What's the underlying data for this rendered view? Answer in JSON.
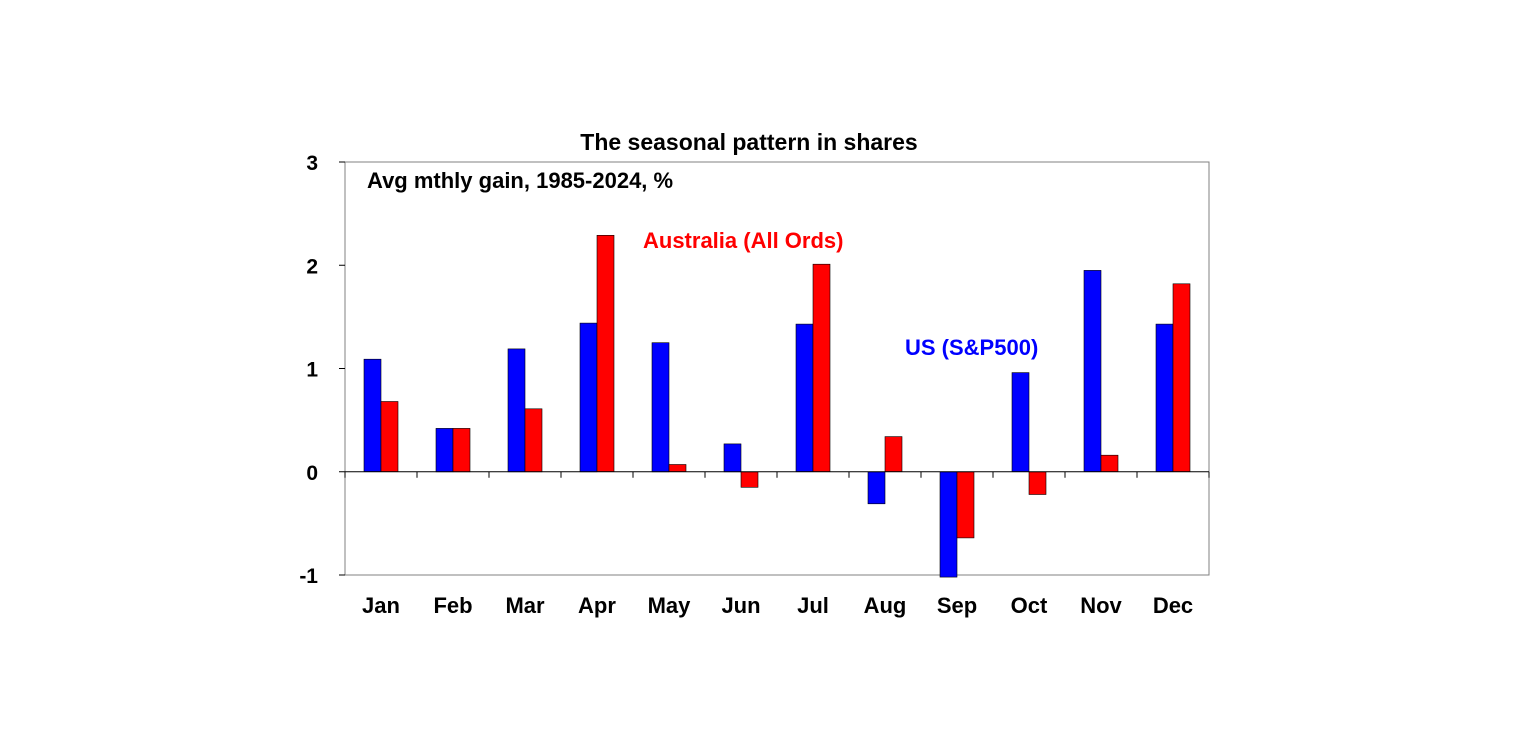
{
  "chart_data": {
    "type": "bar",
    "title": "The seasonal pattern in shares",
    "subtitle": "Avg mthly gain, 1985-2024, %",
    "xlabel": "",
    "ylabel": "",
    "ylim": [
      -1,
      3
    ],
    "yticks": [
      "3",
      "2",
      "1",
      "0",
      "-1"
    ],
    "ytick_values": [
      3,
      2,
      1,
      0,
      -1
    ],
    "grid": false,
    "categories": [
      "Jan",
      "Feb",
      "Mar",
      "Apr",
      "May",
      "Jun",
      "Jul",
      "Aug",
      "Sep",
      "Oct",
      "Nov",
      "Dec"
    ],
    "series": [
      {
        "name": "US (S&P500)",
        "color": "#0000ff",
        "values": [
          1.09,
          0.42,
          1.19,
          1.44,
          1.25,
          0.27,
          1.43,
          -0.31,
          -1.02,
          0.96,
          1.95,
          1.43
        ]
      },
      {
        "name": "Australia (All Ords)",
        "color": "#ff0000",
        "values": [
          0.68,
          0.42,
          0.61,
          2.29,
          0.07,
          -0.15,
          2.01,
          0.34,
          -0.64,
          -0.22,
          0.16,
          1.82
        ]
      }
    ],
    "annotations": [
      {
        "text": "Australia (All Ords)",
        "series": "Australia (All Ords)",
        "color": "#ff0000"
      },
      {
        "text": "US (S&P500)",
        "series": "US (S&P500)",
        "color": "#0000ff"
      }
    ]
  }
}
